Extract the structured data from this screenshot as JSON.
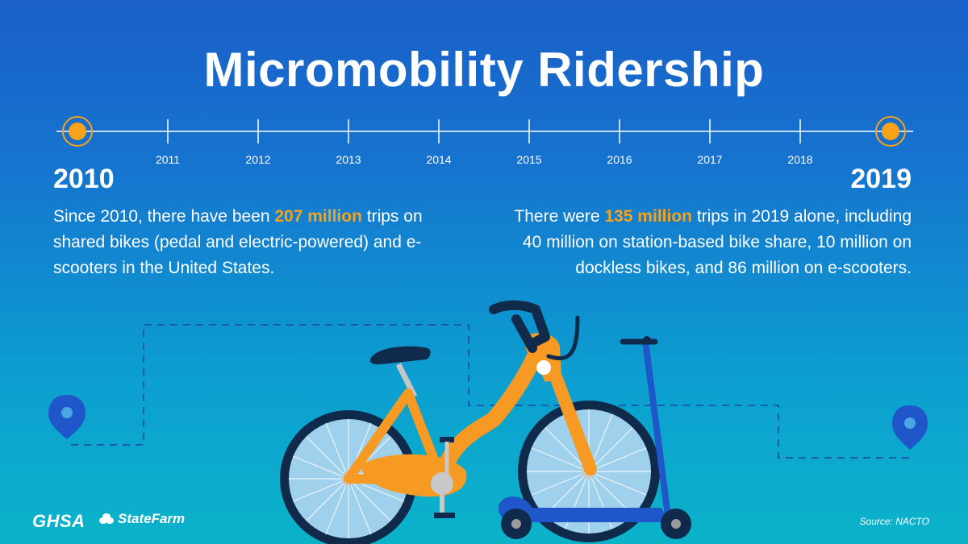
{
  "title": "Micromobility Ridership",
  "timeline": {
    "start_year": "2010",
    "end_year": "2019",
    "ticks": [
      "2011",
      "2012",
      "2013",
      "2014",
      "2015",
      "2016",
      "2017",
      "2018"
    ]
  },
  "left": {
    "before": "Since 2010, there have been ",
    "highlight": "207 million",
    "after": " trips on shared bikes (pedal and electric-powered) and e-scooters in the United States."
  },
  "right": {
    "before": "There were ",
    "highlight": "135 million",
    "after": " trips in 2019 alone, including 40 million on station-based bike share, 10 million on dockless bikes, and 86 million on e-scooters."
  },
  "footer": {
    "ghsa_logo": "GHSA",
    "statefarm_logo": "StateFarm",
    "source": "Source: NACTO"
  },
  "colors": {
    "accent": "#f7a21b",
    "bike": "#f79a23",
    "scooter": "#1f56c9"
  },
  "icons": [
    "location-pin-icon",
    "bike-illustration",
    "scooter-illustration"
  ]
}
